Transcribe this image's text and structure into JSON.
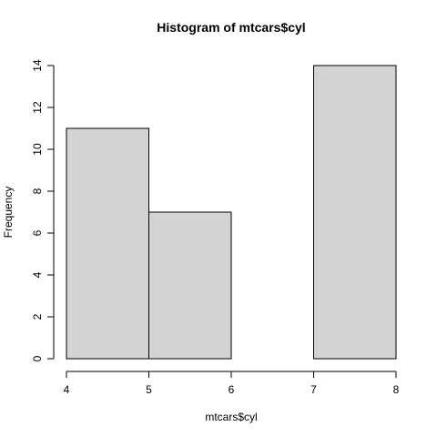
{
  "chart_data": {
    "type": "bar",
    "title": "Histogram of mtcars$cyl",
    "xlabel": "mtcars$cyl",
    "ylabel": "Frequency",
    "bins": [
      {
        "from": 4,
        "to": 5,
        "count": 11
      },
      {
        "from": 5,
        "to": 6,
        "count": 7
      },
      {
        "from": 6,
        "to": 7,
        "count": 0
      },
      {
        "from": 7,
        "to": 8,
        "count": 14
      }
    ],
    "xlim": [
      4,
      8
    ],
    "ylim": [
      0,
      14
    ],
    "x_ticks": [
      4,
      5,
      6,
      7,
      8
    ],
    "y_ticks": [
      0,
      2,
      4,
      6,
      8,
      10,
      12,
      14
    ],
    "grid": false,
    "bar_color": "#d3d3d3",
    "edge_color": "#000000"
  }
}
